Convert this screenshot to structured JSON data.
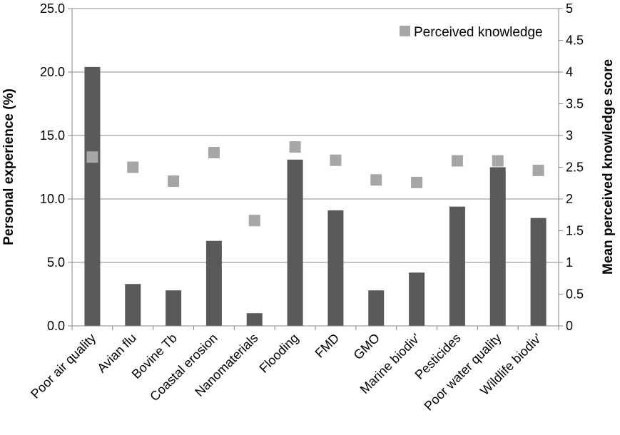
{
  "chart_data": {
    "type": "bar",
    "categories": [
      "Poor air quality",
      "Avian flu",
      "Bovine Tb",
      "Coastal erosion",
      "Nanomaterials",
      "Flooding",
      "FMD",
      "GMO",
      "Marine biodiv'",
      "Pesticides",
      "Poor water quality",
      "Wildlife biodiv'"
    ],
    "series": [
      {
        "axis": "left",
        "kind": "bar",
        "color": "#595959",
        "values": [
          20.4,
          3.3,
          2.8,
          6.7,
          1.0,
          13.1,
          9.1,
          2.8,
          4.2,
          9.4,
          12.5,
          8.5
        ]
      },
      {
        "name": "Perceived knowledge",
        "axis": "right",
        "kind": "scatter",
        "marker": "square",
        "color": "#a6a6a6",
        "values": [
          2.66,
          2.5,
          2.28,
          2.73,
          1.66,
          2.82,
          2.61,
          2.3,
          2.26,
          2.6,
          2.6,
          2.45
        ]
      }
    ],
    "ylabel": "Personal experience (%)",
    "y2label": "Mean perceived knowledge score",
    "ylim": [
      0,
      25
    ],
    "y2lim": [
      0,
      5
    ],
    "yticks": [
      "0.0",
      "5.0",
      "10.0",
      "15.0",
      "20.0",
      "25.0"
    ],
    "y2ticks": [
      "0",
      "0.5",
      "1",
      "1.5",
      "2",
      "2.5",
      "3",
      "3.5",
      "4",
      "4.5",
      "5"
    ],
    "grid": true,
    "legend": {
      "position": "top-right",
      "entries": [
        "Perceived knowledge"
      ]
    }
  }
}
